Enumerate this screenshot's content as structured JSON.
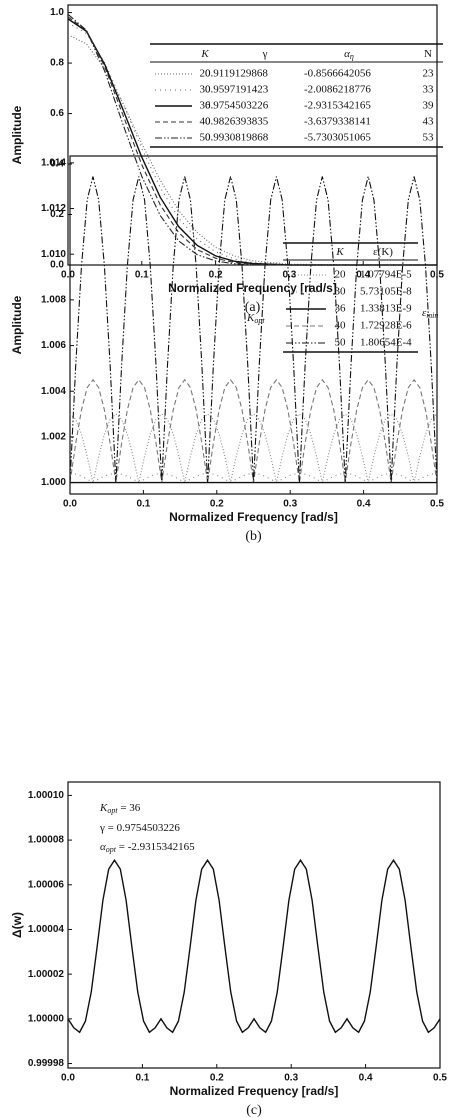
{
  "chart_data": [
    {
      "type": "line",
      "x_label": "Normalized Frequency [rad/s]",
      "y_label": "Amplitude",
      "caption": "(a)",
      "x": [
        0,
        0.025,
        0.05,
        0.075,
        0.1,
        0.125,
        0.15,
        0.175,
        0.2,
        0.225,
        0.25,
        0.3,
        0.4,
        0.5
      ],
      "xlim": [
        0,
        0.5
      ],
      "xticks": [
        {
          "value": 0,
          "label": "0.0"
        },
        0.1,
        0.2,
        0.3,
        0.4,
        0.5
      ],
      "ylim": [
        0,
        1.03
      ],
      "yticks": [
        {
          "value": 0,
          "label": "0.0"
        },
        0.2,
        0.4,
        0.6,
        0.8,
        {
          "value": 1,
          "label": "1.0"
        }
      ],
      "table": {
        "columns": [
          {
            "text": "K"
          },
          {
            "text": "γ"
          },
          {
            "text": "α",
            "sub": "η"
          },
          {
            "text": "N"
          }
        ]
      },
      "series": [
        {
          "name": "20",
          "line_style": "dotted",
          "color": "#666",
          "cells": [
            "0.9119129868",
            "-0.8566642056",
            "23"
          ],
          "values": [
            0.912,
            0.876,
            0.777,
            0.637,
            0.481,
            0.336,
            0.216,
            0.129,
            0.07,
            0.036,
            0.017,
            0.003,
            0,
            0
          ]
        },
        {
          "name": "30",
          "line_style": "sparse-dotted",
          "color": "#666",
          "cells": [
            "0.9597191423",
            "-2.0086218776",
            "33"
          ],
          "values": [
            0.96,
            0.917,
            0.8,
            0.636,
            0.462,
            0.307,
            0.185,
            0.103,
            0.052,
            0.024,
            0.01,
            0.001,
            0,
            0
          ]
        },
        {
          "name": "36",
          "line_style": "solid",
          "color": "#111",
          "cells": [
            "0.9754503226",
            "-2.9315342165",
            "39"
          ],
          "values": [
            0.975,
            0.926,
            0.793,
            0.612,
            0.427,
            0.268,
            0.152,
            0.078,
            0.036,
            0.015,
            0.006,
            0,
            0,
            0
          ]
        },
        {
          "name": "40",
          "line_style": "dashed",
          "color": "#333",
          "cells": [
            "0.9826393835",
            "-3.6379338141",
            "43"
          ],
          "values": [
            0.983,
            0.929,
            0.783,
            0.59,
            0.397,
            0.238,
            0.128,
            0.061,
            0.027,
            0.01,
            0.003,
            0,
            0,
            0
          ]
        },
        {
          "name": "50",
          "line_style": "dash-dot-dot",
          "color": "#222",
          "cells": [
            "0.9930819868",
            "-5.7303051065",
            "53"
          ],
          "values": [
            0.993,
            0.93,
            0.766,
            0.553,
            0.351,
            0.196,
            0.095,
            0.041,
            0.016,
            0.005,
            0.001,
            0,
            0,
            0
          ]
        }
      ]
    },
    {
      "type": "line",
      "x_label": "Normalized Frequency [rad/s]",
      "y_label": "Amplitude",
      "caption": "(b)",
      "x": [
        0,
        0.0078125,
        0.015625,
        0.0234375,
        0.03125,
        0.0390625,
        0.046875,
        0.0546875,
        0.0625,
        0.0703125,
        0.078125,
        0.0859375,
        0.09375,
        0.1015625,
        0.109375,
        0.1171875,
        0.125,
        0.1328125,
        0.140625,
        0.1484375,
        0.15625,
        0.1640625,
        0.171875,
        0.1796875,
        0.1875,
        0.1953125,
        0.203125,
        0.2109375,
        0.21875,
        0.2265625,
        0.234375,
        0.2421875,
        0.25,
        0.2578125,
        0.265625,
        0.2734375,
        0.28125,
        0.2890625,
        0.296875,
        0.3046875,
        0.3125,
        0.3203125,
        0.328125,
        0.3359375,
        0.34375,
        0.3515625,
        0.359375,
        0.3671875,
        0.375,
        0.3828125,
        0.390625,
        0.3984375,
        0.40625,
        0.4140625,
        0.421875,
        0.4296875,
        0.4375,
        0.4453125,
        0.453125,
        0.4609375,
        0.46875,
        0.4765625,
        0.484375,
        0.4921875,
        0.5
      ],
      "xlim": [
        0,
        0.5
      ],
      "xticks": [
        {
          "value": 0,
          "label": "0.0"
        },
        0.1,
        0.2,
        0.3,
        0.4,
        0.5
      ],
      "ylim": [
        0.9995,
        1.0143
      ],
      "yticks": [
        {
          "value": 1,
          "label": "1.000"
        },
        1.002,
        1.004,
        1.006,
        1.008,
        {
          "value": 1.01,
          "label": "1.010"
        },
        1.012,
        1.014
      ],
      "table": {
        "columns": [
          {
            "text": "K"
          },
          {
            "text": "ε(K)"
          }
        ]
      },
      "annotations": [
        {
          "text": "K",
          "sub": "opt"
        },
        {
          "text": "ε",
          "sub": "min"
        }
      ],
      "series": [
        {
          "name": "20",
          "line_style": "dotted",
          "color": "#888",
          "cells": [
            "1.07794E-5"
          ],
          "values": [
            1.003,
            1.00277,
            1.00212,
            1.00115,
            1,
            1.00115,
            1.00212,
            1.00277,
            1.003,
            1.00277,
            1.00212,
            1.00115,
            1,
            1.00115,
            1.00212,
            1.00277,
            1.003,
            1.00277,
            1.00212,
            1.00115,
            1,
            1.00115,
            1.00212,
            1.00277,
            1.003,
            1.00277,
            1.00212,
            1.00115,
            1,
            1.00115,
            1.00212,
            1.00277,
            1.003,
            1.00277,
            1.00212,
            1.00115,
            1,
            1.00115,
            1.00212,
            1.00277,
            1.003,
            1.00277,
            1.00212,
            1.00115,
            1,
            1.00115,
            1.00212,
            1.00277,
            1.003,
            1.00277,
            1.00212,
            1.00115,
            1,
            1.00115,
            1.00212,
            1.00277,
            1.003,
            1.00277,
            1.00212,
            1.00115,
            1,
            1.00115,
            1.00212,
            1.00277,
            1.003
          ]
        },
        {
          "name": "30",
          "line_style": "sparse-dotted",
          "color": "#888",
          "cells": [
            "5.73105E-8"
          ],
          "values": [
            1.0004,
            1.00037,
            1.00028,
            1.00015,
            1,
            1.00015,
            1.00028,
            1.00037,
            1.0004,
            1.00037,
            1.00028,
            1.00015,
            1,
            1.00015,
            1.00028,
            1.00037,
            1.0004,
            1.00037,
            1.00028,
            1.00015,
            1,
            1.00015,
            1.00028,
            1.00037,
            1.0004,
            1.00037,
            1.00028,
            1.00015,
            1,
            1.00015,
            1.00028,
            1.00037,
            1.0004,
            1.00037,
            1.00028,
            1.00015,
            1,
            1.00015,
            1.00028,
            1.00037,
            1.0004,
            1.00037,
            1.00028,
            1.00015,
            1,
            1.00015,
            1.00028,
            1.00037,
            1.0004,
            1.00037,
            1.00028,
            1.00015,
            1,
            1.00015,
            1.00028,
            1.00037,
            1.0004,
            1.00037,
            1.00028,
            1.00015,
            1,
            1.00015,
            1.00028,
            1.00037,
            1.0004
          ]
        },
        {
          "name": "36",
          "line_style": "solid",
          "color": "#111",
          "cells": [
            "1.33813E-9"
          ],
          "values": [
            1,
            1,
            1,
            1,
            1,
            1,
            1,
            1,
            1,
            1,
            1,
            1,
            1,
            1,
            1,
            1,
            1,
            1,
            1,
            1,
            1,
            1,
            1,
            1,
            1,
            1,
            1,
            1,
            1,
            1,
            1,
            1,
            1,
            1,
            1,
            1,
            1,
            1,
            1,
            1,
            1,
            1,
            1,
            1,
            1,
            1,
            1,
            1,
            1,
            1,
            1,
            1,
            1,
            1,
            1,
            1,
            1,
            1,
            1,
            1,
            1,
            1,
            1,
            1,
            1
          ]
        },
        {
          "name": "40",
          "line_style": "dashed",
          "color": "#777",
          "cells": [
            "1.72928E-6"
          ],
          "values": [
            1,
            1.00172,
            1.00318,
            1.00416,
            1.0045,
            1.00416,
            1.00318,
            1.00172,
            1,
            1.00172,
            1.00318,
            1.00416,
            1.0045,
            1.00416,
            1.00318,
            1.00172,
            1,
            1.00172,
            1.00318,
            1.00416,
            1.0045,
            1.00416,
            1.00318,
            1.00172,
            1,
            1.00172,
            1.00318,
            1.00416,
            1.0045,
            1.00416,
            1.00318,
            1.00172,
            1,
            1.00172,
            1.00318,
            1.00416,
            1.0045,
            1.00416,
            1.00318,
            1.00172,
            1,
            1.00172,
            1.00318,
            1.00416,
            1.0045,
            1.00416,
            1.00318,
            1.00172,
            1,
            1.00172,
            1.00318,
            1.00416,
            1.0045,
            1.00416,
            1.00318,
            1.00172,
            1,
            1.00172,
            1.00318,
            1.00416,
            1.0045,
            1.00416,
            1.00318,
            1.00172,
            1
          ]
        },
        {
          "name": "50",
          "line_style": "dash-dot-dot",
          "color": "#111",
          "cells": [
            "1.80654E-4"
          ],
          "values": [
            1,
            1.00513,
            1.00948,
            1.01238,
            1.0134,
            1.01238,
            1.00948,
            1.00513,
            1,
            1.00513,
            1.00948,
            1.01238,
            1.0134,
            1.01238,
            1.00948,
            1.00513,
            1,
            1.00513,
            1.00948,
            1.01238,
            1.0134,
            1.01238,
            1.00948,
            1.00513,
            1,
            1.00513,
            1.00948,
            1.01238,
            1.0134,
            1.01238,
            1.00948,
            1.00513,
            1,
            1.00513,
            1.00948,
            1.01238,
            1.0134,
            1.01238,
            1.00948,
            1.00513,
            1,
            1.00513,
            1.00948,
            1.01238,
            1.0134,
            1.01238,
            1.00948,
            1.00513,
            1,
            1.00513,
            1.00948,
            1.01238,
            1.0134,
            1.01238,
            1.00948,
            1.00513,
            1,
            1.00513,
            1.00948,
            1.01238,
            1.0134,
            1.01238,
            1.00948,
            1.00513,
            1
          ]
        }
      ]
    },
    {
      "type": "line",
      "x_label": "Normalized Frequency [rad/s]",
      "y_label": "Δ(w)",
      "caption": "(c)",
      "x": [
        0,
        0.0078125,
        0.015625,
        0.0234375,
        0.03125,
        0.0390625,
        0.046875,
        0.0546875,
        0.0625,
        0.0703125,
        0.078125,
        0.0859375,
        0.09375,
        0.1015625,
        0.109375,
        0.1171875,
        0.125,
        0.1328125,
        0.140625,
        0.1484375,
        0.15625,
        0.1640625,
        0.171875,
        0.1796875,
        0.1875,
        0.1953125,
        0.203125,
        0.2109375,
        0.21875,
        0.2265625,
        0.234375,
        0.2421875,
        0.25,
        0.2578125,
        0.265625,
        0.2734375,
        0.28125,
        0.2890625,
        0.296875,
        0.3046875,
        0.3125,
        0.3203125,
        0.328125,
        0.3359375,
        0.34375,
        0.3515625,
        0.359375,
        0.3671875,
        0.375,
        0.3828125,
        0.390625,
        0.3984375,
        0.40625,
        0.4140625,
        0.421875,
        0.4296875,
        0.4375,
        0.4453125,
        0.453125,
        0.4609375,
        0.46875,
        0.4765625,
        0.484375,
        0.4921875,
        0.5
      ],
      "xlim": [
        0,
        0.5
      ],
      "xticks": [
        {
          "value": 0,
          "label": "0.0"
        },
        0.1,
        0.2,
        0.3,
        0.4,
        0.5
      ],
      "ylim": [
        0.999978,
        1.000106
      ],
      "yticks": [
        0.99998,
        {
          "value": 1,
          "label": "1.00000"
        },
        1.00002,
        1.00004,
        1.00006,
        1.00008,
        {
          "value": 1.0001,
          "label": "1.00010"
        }
      ],
      "annotations": [
        {
          "text": "K",
          "sub": "opt",
          "rest": " = 36"
        },
        {
          "text": "γ = 0.9754503226"
        },
        {
          "text": "α",
          "sub": "opt",
          "rest": " = -2.9315342165"
        }
      ],
      "series": [
        {
          "line_style": "solid",
          "color": "#111",
          "values": [
            1,
            0.999996,
            0.999994,
            0.999999,
            1.000012,
            1.000032,
            1.000053,
            1.000067,
            1.000071,
            1.000067,
            1.000053,
            1.000032,
            1.000012,
            0.999999,
            0.999994,
            0.999996,
            1,
            0.999996,
            0.999994,
            0.999999,
            1.000012,
            1.000032,
            1.000053,
            1.000067,
            1.000071,
            1.000067,
            1.000053,
            1.000032,
            1.000012,
            0.999999,
            0.999994,
            0.999996,
            1,
            0.999996,
            0.999994,
            0.999999,
            1.000012,
            1.000032,
            1.000053,
            1.000067,
            1.000071,
            1.000067,
            1.000053,
            1.000032,
            1.000012,
            0.999999,
            0.999994,
            0.999996,
            1,
            0.999996,
            0.999994,
            0.999999,
            1.000012,
            1.000032,
            1.000053,
            1.000067,
            1.000071,
            1.000067,
            1.000053,
            1.000032,
            1.000012,
            0.999999,
            0.999994,
            0.999996,
            1
          ]
        }
      ]
    }
  ]
}
